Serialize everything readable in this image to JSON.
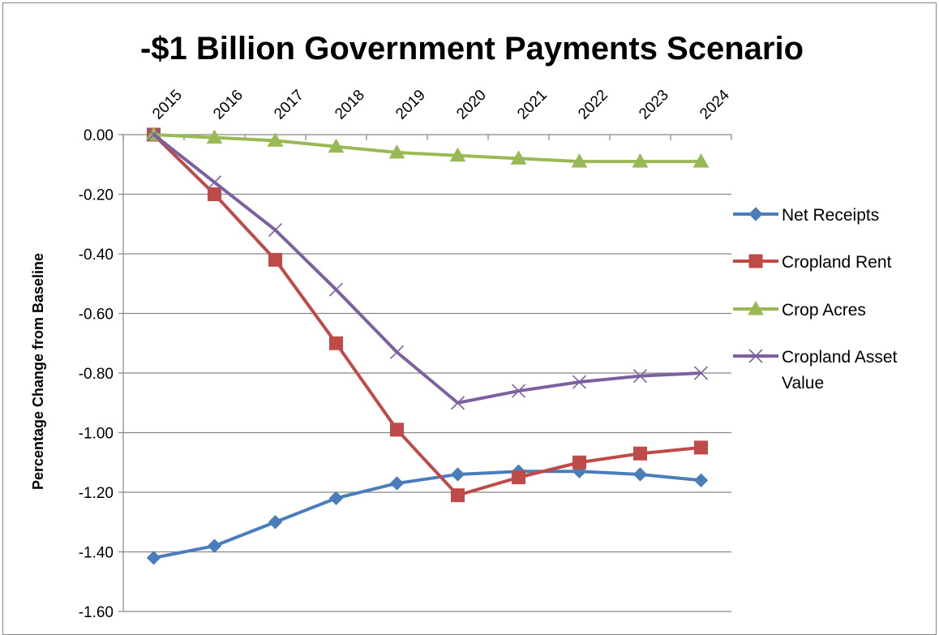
{
  "chart_data": {
    "type": "line",
    "title": "-$1 Billion Government Payments Scenario",
    "ylabel": "Percentage Change from Baseline",
    "xlabel": "",
    "categories": [
      "2015",
      "2016",
      "2017",
      "2018",
      "2019",
      "2020",
      "2021",
      "2022",
      "2023",
      "2024"
    ],
    "ylim": [
      -1.6,
      0.0
    ],
    "yticks": [
      "0.00",
      "-0.20",
      "-0.40",
      "-0.60",
      "-0.80",
      "-1.00",
      "-1.20",
      "-1.40",
      "-1.60"
    ],
    "ytick_values": [
      0.0,
      -0.2,
      -0.4,
      -0.6,
      -0.8,
      -1.0,
      -1.2,
      -1.4,
      -1.6
    ],
    "x_axis_position": "top",
    "grid": "horizontal",
    "legend_position": "right",
    "series": [
      {
        "name": "Net Receipts",
        "marker": "diamond",
        "color": "#4A7EBB",
        "values": [
          -1.42,
          -1.38,
          -1.3,
          -1.22,
          -1.17,
          -1.14,
          -1.13,
          -1.13,
          -1.14,
          -1.16
        ]
      },
      {
        "name": "Cropland Rent",
        "marker": "square",
        "color": "#BE4B48",
        "values": [
          0.0,
          -0.2,
          -0.42,
          -0.7,
          -0.99,
          -1.21,
          -1.15,
          -1.1,
          -1.07,
          -1.05
        ]
      },
      {
        "name": "Crop Acres",
        "marker": "triangle",
        "color": "#98B954",
        "values": [
          0.0,
          -0.01,
          -0.02,
          -0.04,
          -0.06,
          -0.07,
          -0.08,
          -0.09,
          -0.09,
          -0.09
        ]
      },
      {
        "name": "Cropland Asset Value",
        "marker": "x",
        "color": "#7D60A0",
        "values": [
          0.0,
          -0.16,
          -0.32,
          -0.52,
          -0.73,
          -0.9,
          -0.86,
          -0.83,
          -0.81,
          -0.8
        ]
      }
    ]
  }
}
